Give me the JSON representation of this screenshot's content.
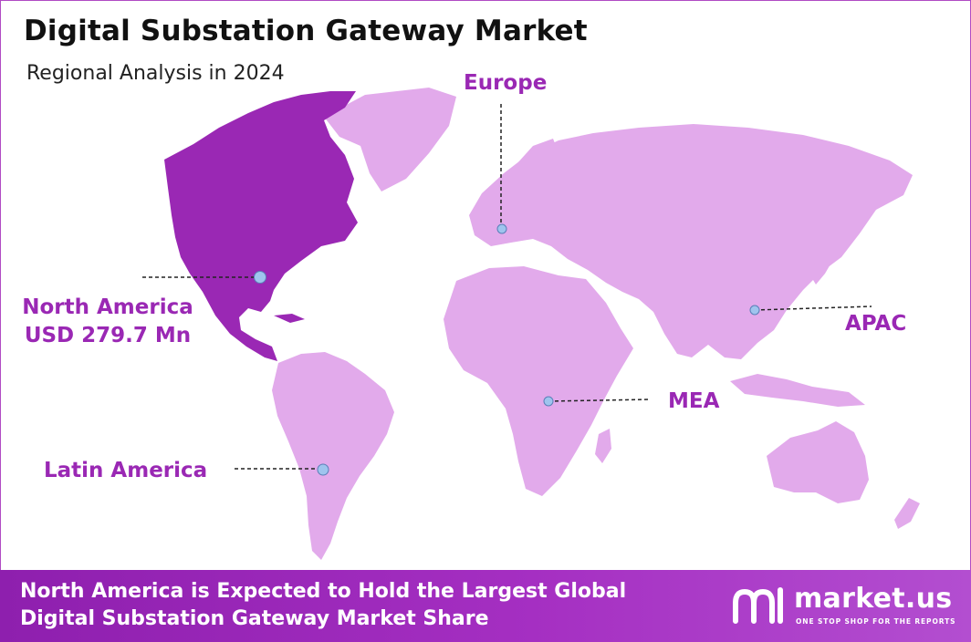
{
  "header": {
    "title": "Digital Substation Gateway Market",
    "subtitle": "Regional Analysis in 2024"
  },
  "regions": {
    "north_america": {
      "name": "North America",
      "value": "USD 279.7 Mn",
      "highlighted": true
    },
    "europe": {
      "name": "Europe"
    },
    "apac": {
      "name": "APAC"
    },
    "mea": {
      "name": "MEA"
    },
    "latin_america": {
      "name": "Latin America"
    }
  },
  "colors": {
    "highlight": "#9a28b4",
    "land": "#e2aaeb",
    "marker": "#9fc4ee",
    "label": "#9a28b4"
  },
  "footer": {
    "line1": "North America is Expected to Hold the Largest Global",
    "line2": "Digital Substation Gateway Market Share"
  },
  "brand": {
    "name": "market.us",
    "tagline": "ONE STOP SHOP FOR THE REPORTS"
  }
}
